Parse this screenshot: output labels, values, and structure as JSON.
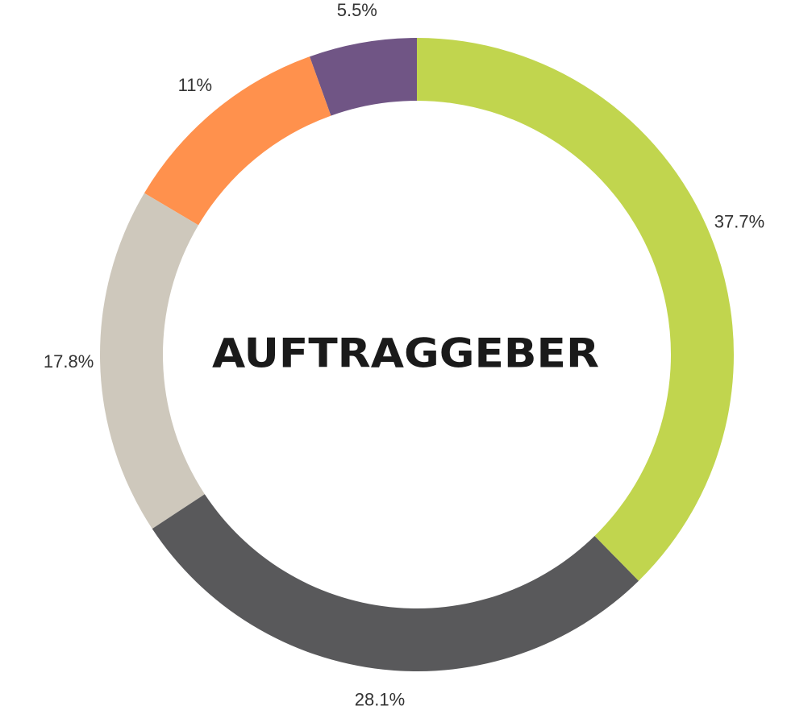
{
  "chart_data": {
    "type": "donut",
    "title": "AUFTRAGGEBER",
    "values": [
      37.7,
      28.1,
      17.8,
      11,
      5.5
    ],
    "value_labels": [
      "37.7%",
      "28.1%",
      "17.8%",
      "11%",
      "5.5%"
    ],
    "colors": [
      "#c1d54e",
      "#59595b",
      "#cec8bc",
      "#ff914d",
      "#705585"
    ]
  }
}
